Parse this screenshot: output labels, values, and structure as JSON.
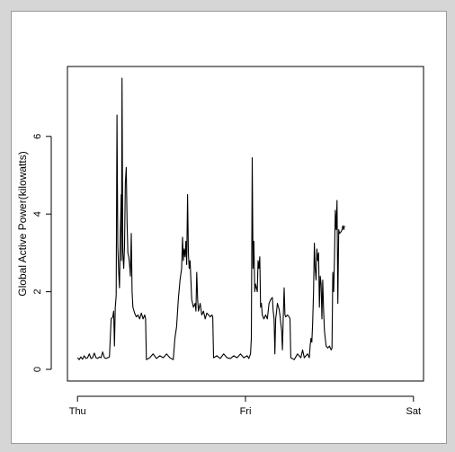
{
  "chart_data": {
    "type": "line",
    "title": "",
    "xlabel": "",
    "ylabel": "Global Active Power(kilowatts)",
    "x_ticks": [
      "Thu",
      "Fri",
      "Sat"
    ],
    "x_unit": "days",
    "xlim": [
      0,
      2
    ],
    "y_ticks": [
      0,
      2,
      4,
      6
    ],
    "ylim": [
      0,
      7.5
    ],
    "grid": false,
    "line_color": "#000000",
    "series": [
      {
        "values_x_y": [
          [
            0.0,
            0.3
          ],
          [
            0.01,
            0.25
          ],
          [
            0.02,
            0.32
          ],
          [
            0.03,
            0.26
          ],
          [
            0.04,
            0.35
          ],
          [
            0.05,
            0.28
          ],
          [
            0.06,
            0.3
          ],
          [
            0.07,
            0.4
          ],
          [
            0.08,
            0.28
          ],
          [
            0.09,
            0.3
          ],
          [
            0.1,
            0.42
          ],
          [
            0.11,
            0.3
          ],
          [
            0.12,
            0.28
          ],
          [
            0.13,
            0.32
          ],
          [
            0.14,
            0.3
          ],
          [
            0.15,
            0.45
          ],
          [
            0.16,
            0.3
          ],
          [
            0.17,
            0.28
          ],
          [
            0.18,
            0.3
          ],
          [
            0.19,
            0.32
          ],
          [
            0.2,
            1.3
          ],
          [
            0.21,
            1.35
          ],
          [
            0.215,
            1.5
          ],
          [
            0.22,
            0.6
          ],
          [
            0.225,
            1.6
          ],
          [
            0.23,
            1.9
          ],
          [
            0.235,
            6.55
          ],
          [
            0.24,
            3.2
          ],
          [
            0.245,
            2.5
          ],
          [
            0.25,
            2.1
          ],
          [
            0.255,
            3.5
          ],
          [
            0.26,
            4.5
          ],
          [
            0.262,
            2.8
          ],
          [
            0.265,
            7.5
          ],
          [
            0.27,
            3.0
          ],
          [
            0.275,
            2.6
          ],
          [
            0.28,
            3.2
          ],
          [
            0.285,
            4.8
          ],
          [
            0.29,
            5.2
          ],
          [
            0.295,
            3.8
          ],
          [
            0.3,
            3.0
          ],
          [
            0.305,
            2.9
          ],
          [
            0.31,
            2.7
          ],
          [
            0.315,
            2.4
          ],
          [
            0.32,
            3.5
          ],
          [
            0.325,
            2.0
          ],
          [
            0.33,
            1.6
          ],
          [
            0.34,
            1.45
          ],
          [
            0.35,
            1.35
          ],
          [
            0.36,
            1.4
          ],
          [
            0.37,
            1.3
          ],
          [
            0.38,
            1.45
          ],
          [
            0.39,
            1.3
          ],
          [
            0.4,
            1.4
          ],
          [
            0.405,
            1.3
          ],
          [
            0.41,
            0.25
          ],
          [
            0.43,
            0.3
          ],
          [
            0.45,
            0.4
          ],
          [
            0.47,
            0.28
          ],
          [
            0.49,
            0.35
          ],
          [
            0.51,
            0.3
          ],
          [
            0.53,
            0.4
          ],
          [
            0.55,
            0.3
          ],
          [
            0.57,
            0.25
          ],
          [
            0.58,
            0.8
          ],
          [
            0.59,
            1.1
          ],
          [
            0.6,
            1.8
          ],
          [
            0.61,
            2.3
          ],
          [
            0.62,
            2.6
          ],
          [
            0.625,
            3.4
          ],
          [
            0.63,
            2.8
          ],
          [
            0.635,
            3.1
          ],
          [
            0.64,
            2.9
          ],
          [
            0.645,
            3.3
          ],
          [
            0.65,
            2.7
          ],
          [
            0.655,
            4.5
          ],
          [
            0.66,
            3.0
          ],
          [
            0.665,
            2.6
          ],
          [
            0.67,
            2.8
          ],
          [
            0.675,
            2.3
          ],
          [
            0.68,
            1.8
          ],
          [
            0.69,
            1.6
          ],
          [
            0.7,
            1.7
          ],
          [
            0.705,
            1.5
          ],
          [
            0.71,
            2.5
          ],
          [
            0.715,
            1.8
          ],
          [
            0.72,
            1.5
          ],
          [
            0.73,
            1.7
          ],
          [
            0.74,
            1.4
          ],
          [
            0.75,
            1.5
          ],
          [
            0.76,
            1.3
          ],
          [
            0.77,
            1.45
          ],
          [
            0.78,
            1.4
          ],
          [
            0.79,
            1.35
          ],
          [
            0.8,
            1.4
          ],
          [
            0.805,
            1.35
          ],
          [
            0.81,
            0.3
          ],
          [
            0.83,
            0.35
          ],
          [
            0.85,
            0.28
          ],
          [
            0.87,
            0.4
          ],
          [
            0.89,
            0.3
          ],
          [
            0.91,
            0.28
          ],
          [
            0.93,
            0.35
          ],
          [
            0.95,
            0.3
          ],
          [
            0.97,
            0.4
          ],
          [
            0.99,
            0.3
          ],
          [
            1.01,
            0.35
          ],
          [
            1.02,
            0.28
          ],
          [
            1.03,
            0.4
          ],
          [
            1.035,
            0.8
          ],
          [
            1.04,
            5.45
          ],
          [
            1.045,
            2.6
          ],
          [
            1.05,
            3.3
          ],
          [
            1.055,
            2.0
          ],
          [
            1.06,
            2.2
          ],
          [
            1.07,
            2.0
          ],
          [
            1.075,
            2.8
          ],
          [
            1.08,
            2.6
          ],
          [
            1.085,
            2.9
          ],
          [
            1.09,
            1.6
          ],
          [
            1.095,
            1.7
          ],
          [
            1.1,
            1.4
          ],
          [
            1.11,
            1.3
          ],
          [
            1.12,
            1.4
          ],
          [
            1.13,
            1.3
          ],
          [
            1.14,
            1.7
          ],
          [
            1.15,
            1.8
          ],
          [
            1.16,
            1.85
          ],
          [
            1.165,
            1.5
          ],
          [
            1.17,
            1.3
          ],
          [
            1.175,
            0.4
          ],
          [
            1.18,
            1.3
          ],
          [
            1.185,
            1.5
          ],
          [
            1.19,
            1.7
          ],
          [
            1.2,
            1.55
          ],
          [
            1.205,
            1.4
          ],
          [
            1.21,
            1.2
          ],
          [
            1.215,
            1.0
          ],
          [
            1.22,
            0.5
          ],
          [
            1.225,
            1.35
          ],
          [
            1.23,
            2.1
          ],
          [
            1.235,
            1.4
          ],
          [
            1.24,
            1.35
          ],
          [
            1.25,
            1.4
          ],
          [
            1.26,
            1.35
          ],
          [
            1.265,
            1.3
          ],
          [
            1.27,
            0.3
          ],
          [
            1.29,
            0.25
          ],
          [
            1.31,
            0.4
          ],
          [
            1.33,
            0.3
          ],
          [
            1.34,
            0.5
          ],
          [
            1.35,
            0.3
          ],
          [
            1.36,
            0.35
          ],
          [
            1.37,
            0.4
          ],
          [
            1.38,
            0.3
          ],
          [
            1.385,
            0.6
          ],
          [
            1.39,
            0.8
          ],
          [
            1.395,
            0.7
          ],
          [
            1.4,
            1.2
          ],
          [
            1.405,
            2.0
          ],
          [
            1.41,
            3.25
          ],
          [
            1.415,
            2.6
          ],
          [
            1.42,
            2.3
          ],
          [
            1.425,
            3.1
          ],
          [
            1.43,
            2.8
          ],
          [
            1.435,
            3.0
          ],
          [
            1.44,
            1.6
          ],
          [
            1.445,
            2.4
          ],
          [
            1.45,
            2.2
          ],
          [
            1.455,
            1.3
          ],
          [
            1.46,
            2.3
          ],
          [
            1.465,
            1.5
          ],
          [
            1.47,
            1.0
          ],
          [
            1.475,
            0.8
          ],
          [
            1.48,
            0.6
          ],
          [
            1.49,
            0.55
          ],
          [
            1.5,
            0.6
          ],
          [
            1.51,
            0.5
          ],
          [
            1.515,
            0.55
          ],
          [
            1.52,
            2.5
          ],
          [
            1.525,
            2.0
          ],
          [
            1.53,
            2.9
          ],
          [
            1.535,
            4.1
          ],
          [
            1.54,
            3.6
          ],
          [
            1.545,
            4.35
          ],
          [
            1.55,
            1.7
          ],
          [
            1.555,
            3.6
          ],
          [
            1.56,
            3.5
          ],
          [
            1.57,
            3.55
          ],
          [
            1.575,
            3.6
          ],
          [
            1.58,
            3.7
          ],
          [
            1.585,
            3.6
          ],
          [
            1.59,
            3.7
          ]
        ]
      }
    ]
  }
}
